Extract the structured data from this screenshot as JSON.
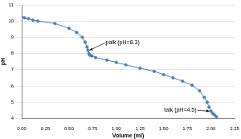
{
  "chart_data": {
    "type": "line",
    "x_label": "Volume (ml)",
    "y_label": "pH",
    "x": [
      0,
      0.03,
      0.07,
      0.12,
      0.17,
      0.35,
      0.5,
      0.58,
      0.64,
      0.67,
      0.69,
      0.7,
      0.71,
      0.72,
      0.74,
      0.78,
      0.9,
      1.0,
      1.1,
      1.25,
      1.4,
      1.5,
      1.6,
      1.7,
      1.8,
      1.88,
      1.93,
      1.96,
      1.98,
      2.0,
      2.02,
      2.04,
      2.06
    ],
    "values": [
      10.25,
      10.2,
      10.15,
      10.05,
      10.0,
      9.85,
      9.55,
      9.3,
      9.0,
      8.7,
      8.4,
      8.2,
      8.0,
      7.9,
      7.85,
      7.75,
      7.6,
      7.45,
      7.3,
      7.1,
      6.9,
      6.7,
      6.5,
      6.3,
      6.05,
      5.7,
      5.3,
      5.0,
      4.7,
      4.45,
      4.3,
      4.2,
      4.1
    ],
    "color": "#4a7ebb",
    "marker": "circle",
    "line_style": "solid",
    "xlim": [
      0,
      2.25
    ],
    "xticks": [
      {
        "value": 0,
        "label": "0.00"
      },
      {
        "value": 0.25,
        "label": "0.25"
      },
      {
        "value": 0.5,
        "label": "0.50"
      },
      {
        "value": 0.75,
        "label": "0.75"
      },
      {
        "value": 1,
        "label": "1.00"
      },
      {
        "value": 1.25,
        "label": "1.25"
      },
      {
        "value": 1.5,
        "label": "1.50"
      },
      {
        "value": 1.75,
        "label": "1.75"
      },
      {
        "value": 2,
        "label": "2.00"
      },
      {
        "value": 2.25,
        "label": "2.25"
      }
    ],
    "ylim": [
      4,
      11
    ],
    "yticks": [
      4,
      5,
      6,
      7,
      8,
      9,
      10,
      11
    ],
    "grid": true,
    "annotations": [
      {
        "text": "palk (pH=8.3)",
        "x": 0.7,
        "y": 8.2
      },
      {
        "text": "talk (pH=4.5)",
        "x": 2.0,
        "y": 4.45
      }
    ]
  }
}
